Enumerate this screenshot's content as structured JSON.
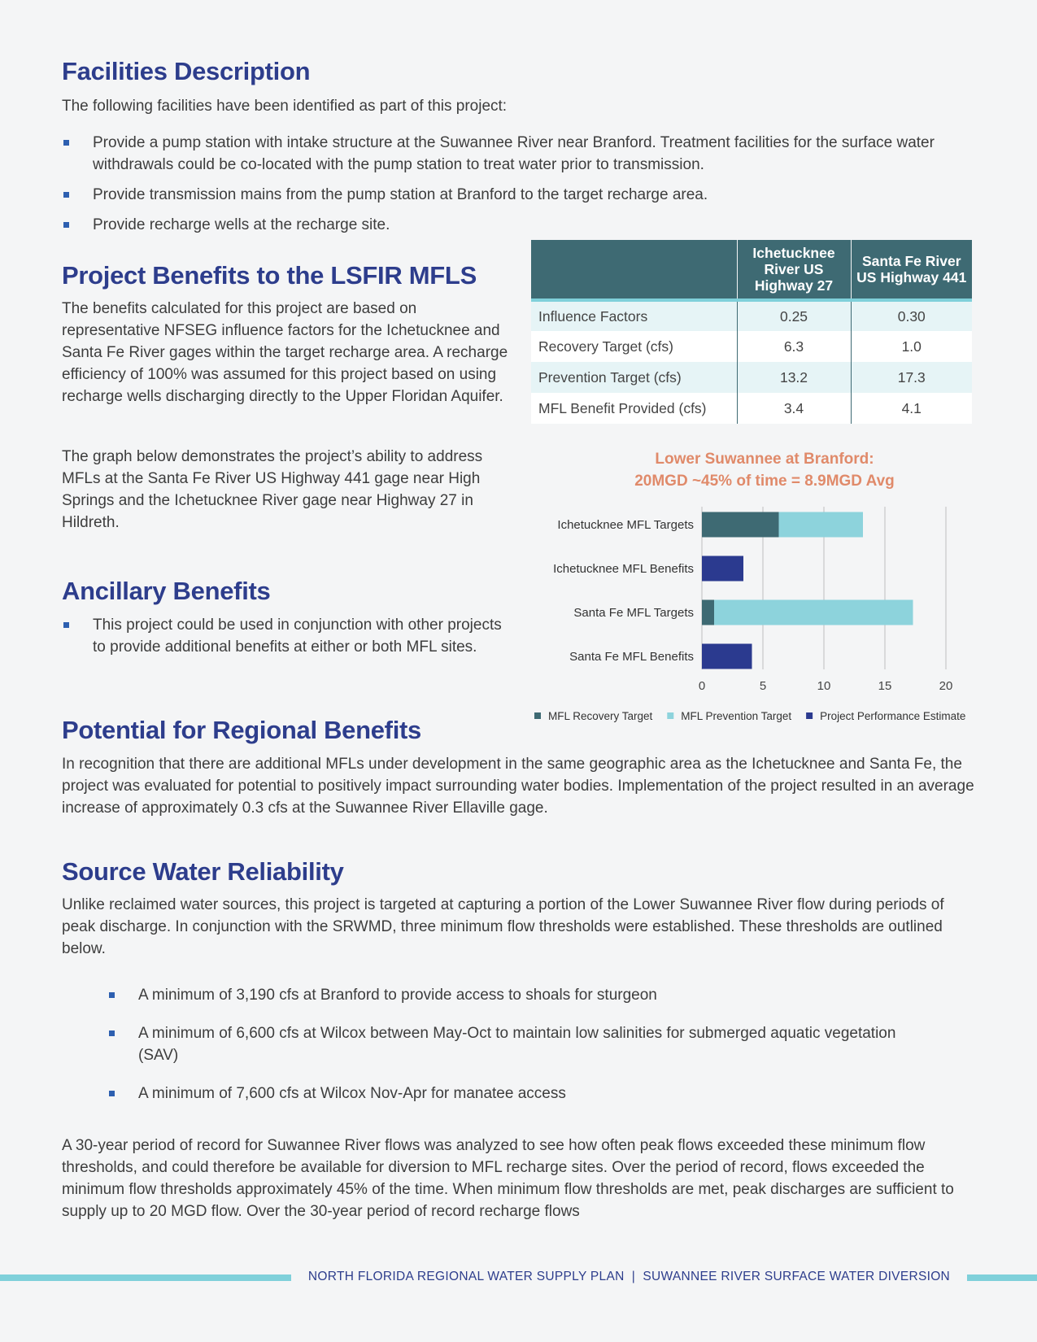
{
  "facilities": {
    "heading": "Facilities Description",
    "intro": "The following facilities have been identified as part of this project:",
    "bullets": [
      "Provide a pump station with intake structure at the Suwannee River near Branford. Treatment facilities for the surface water withdrawals could be co-located with the pump station to treat water prior to transmission.",
      "Provide transmission mains from the pump station at Branford to the target recharge area.",
      "Provide recharge wells at the recharge site."
    ]
  },
  "benefits": {
    "heading": "Project Benefits to the LSFIR MFLS",
    "para1": "The benefits calculated for this project are based on representative NFSEG influence factors for the Ichetucknee and Santa Fe River gages within the target recharge area. A recharge efficiency of 100% was assumed for this project based on using recharge wells discharging directly to the Upper Floridan Aquifer.",
    "para2": "The graph below demonstrates the project’s ability to address MFLs at the Santa Fe River US Highway 441 gage near High Springs and the Ichetucknee River gage near Highway 27 in Hildreth."
  },
  "table": {
    "headers": [
      "",
      "Ichetucknee River US Highway 27",
      "Santa Fe River US Highway 441"
    ],
    "rows": [
      [
        "Influence Factors",
        "0.25",
        "0.30"
      ],
      [
        "Recovery Target (cfs)",
        "6.3",
        "1.0"
      ],
      [
        "Prevention Target (cfs)",
        "13.2",
        "17.3"
      ],
      [
        "MFL Benefit Provided (cfs)",
        "3.4",
        "4.1"
      ]
    ]
  },
  "ancillary": {
    "heading": "Ancillary Benefits",
    "bullets": [
      "This project could be used in conjunction with other projects to provide additional benefits at either or both MFL sites."
    ]
  },
  "chart_data": {
    "type": "bar",
    "orientation": "horizontal",
    "stacked": true,
    "title": [
      "Lower Suwannee at Branford:",
      "20MGD ~45% of time = 8.9MGD Avg"
    ],
    "categories": [
      "Ichetucknee MFL Targets",
      "Ichetucknee MFL Benefits",
      "Santa Fe MFL Targets",
      "Santa Fe MFL Benefits"
    ],
    "series": [
      {
        "name": "MFL Recovery Target",
        "color": "#3e6a73",
        "values": [
          6.3,
          0,
          1.0,
          0
        ]
      },
      {
        "name": "MFL Prevention Target",
        "color": "#8dd3dc",
        "values": [
          13.2,
          0,
          17.3,
          0
        ]
      },
      {
        "name": "Project Performance Estimate",
        "color": "#2b3a8f",
        "values": [
          0,
          3.4,
          0,
          4.1
        ]
      }
    ],
    "xlim": [
      0,
      20
    ],
    "xticks": [
      "0",
      "5",
      "10",
      "15",
      "20"
    ],
    "grid": true,
    "legend": "bottom",
    "title_color": "#e08a6a"
  },
  "regional": {
    "heading": "Potential for Regional Benefits",
    "para": "In recognition that there are additional MFLs under development in the same geographic area as the Ichetucknee and Santa Fe, the project was evaluated for potential to positively impact surrounding water bodies. Implementation of the project resulted in an average increase of approximately 0.3 cfs at the Suwannee River Ellaville gage."
  },
  "reliability": {
    "heading": "Source Water Reliability",
    "para1": "Unlike reclaimed water sources, this project is targeted at capturing a portion of the Lower Suwannee River flow during periods of peak discharge. In conjunction with the SRWMD, three minimum flow thresholds were established. These thresholds are outlined below.",
    "bullets": [
      "A minimum of 3,190 cfs at Branford to provide access to shoals for sturgeon",
      "A minimum of 6,600 cfs at Wilcox between May-Oct to maintain low salinities for submerged aquatic vegetation (SAV)",
      "A minimum of 7,600 cfs at Wilcox Nov-Apr for manatee access"
    ],
    "para2": "A 30-year period of record for Suwannee River flows was analyzed to see how often peak flows exceeded these minimum flow thresholds, and could therefore be available for diversion to MFL recharge sites. Over the period of record, flows exceeded the minimum flow thresholds approximately 45% of the time. When minimum flow thresholds are met, peak discharges are sufficient to supply up to 20 MGD flow. Over the 30-year period of record recharge flows"
  },
  "footer": {
    "text": "NORTH FLORIDA REGIONAL WATER SUPPLY PLAN  |  SUWANNEE RIVER SURFACE WATER DIVERSION"
  },
  "colors": {
    "heading": "#2d3d8c",
    "teal": "#3e6a73",
    "light_teal": "#7fd0da"
  }
}
